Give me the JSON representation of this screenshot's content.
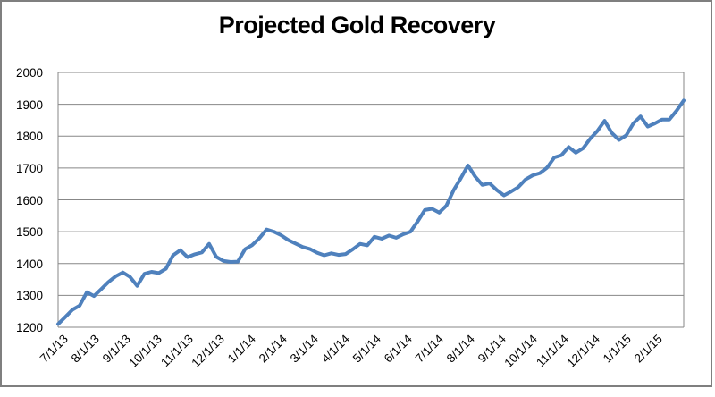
{
  "chart_data": {
    "type": "line",
    "title": "Projected Gold Recovery",
    "ylim": [
      1200,
      2000
    ],
    "y_ticks": [
      1200,
      1300,
      1400,
      1500,
      1600,
      1700,
      1800,
      1900,
      2000
    ],
    "x_labels": [
      "7/1/13",
      "8/1/13",
      "9/1/13",
      "10/1/13",
      "11/1/13",
      "12/1/13",
      "1/1/14",
      "2/1/14",
      "3/1/14",
      "4/1/14",
      "5/1/14",
      "6/1/14",
      "7/1/14",
      "8/1/14",
      "9/1/14",
      "10/1/14",
      "11/1/14",
      "12/1/14",
      "1/1/15",
      "2/1/15"
    ],
    "grid": true,
    "legend_visible": false,
    "series": [
      {
        "name": "Projected Gold Recovery",
        "x_dates": [
          "7/1/13",
          "7/8/13",
          "7/15/13",
          "7/22/13",
          "7/29/13",
          "8/5/13",
          "8/12/13",
          "8/19/13",
          "8/26/13",
          "9/2/13",
          "9/9/13",
          "9/16/13",
          "9/23/13",
          "9/30/13",
          "10/7/13",
          "10/14/13",
          "10/21/13",
          "10/28/13",
          "11/4/13",
          "11/11/13",
          "11/18/13",
          "11/25/13",
          "12/2/13",
          "12/9/13",
          "12/16/13",
          "12/23/13",
          "12/30/13",
          "1/6/14",
          "1/13/14",
          "1/20/14",
          "1/27/14",
          "2/3/14",
          "2/10/14",
          "2/17/14",
          "2/24/14",
          "3/3/14",
          "3/10/14",
          "3/17/14",
          "3/24/14",
          "3/31/14",
          "4/7/14",
          "4/14/14",
          "4/21/14",
          "4/28/14",
          "5/5/14",
          "5/12/14",
          "5/19/14",
          "5/26/14",
          "6/2/14",
          "6/9/14",
          "6/16/14",
          "6/23/14",
          "6/30/14",
          "7/7/14",
          "7/14/14",
          "7/21/14",
          "7/28/14",
          "8/4/14",
          "8/11/14",
          "8/18/14",
          "8/25/14",
          "9/1/14",
          "9/8/14",
          "9/15/14",
          "9/22/14",
          "9/29/14",
          "10/6/14",
          "10/13/14",
          "10/20/14",
          "10/27/14",
          "11/3/14",
          "11/10/14",
          "11/17/14",
          "11/24/14",
          "12/1/14",
          "12/8/14",
          "12/15/14",
          "12/22/14",
          "12/29/14",
          "1/5/15",
          "1/12/15",
          "1/19/15",
          "1/26/15",
          "2/2/15",
          "2/9/15",
          "2/16/15",
          "2/23/15",
          "3/2/15"
        ],
        "values": [
          1210,
          1232,
          1255,
          1268,
          1310,
          1298,
          1320,
          1342,
          1360,
          1372,
          1358,
          1330,
          1368,
          1374,
          1370,
          1384,
          1426,
          1442,
          1420,
          1429,
          1435,
          1462,
          1421,
          1408,
          1405,
          1406,
          1445,
          1458,
          1480,
          1507,
          1500,
          1489,
          1474,
          1463,
          1452,
          1446,
          1434,
          1426,
          1432,
          1427,
          1430,
          1445,
          1462,
          1457,
          1484,
          1478,
          1488,
          1481,
          1492,
          1500,
          1532,
          1568,
          1572,
          1560,
          1582,
          1630,
          1668,
          1708,
          1673,
          1647,
          1652,
          1631,
          1614,
          1626,
          1640,
          1664,
          1677,
          1684,
          1701,
          1733,
          1740,
          1766,
          1748,
          1762,
          1792,
          1816,
          1848,
          1810,
          1788,
          1802,
          1840,
          1862,
          1830,
          1840,
          1852,
          1852,
          1880,
          1912
        ]
      }
    ],
    "colors": {
      "line": "#4F81BD",
      "grid": "#878787",
      "plot_border": "#878787",
      "text": "#000000",
      "frame_border": "#7f7f7f",
      "background": "#ffffff"
    }
  }
}
